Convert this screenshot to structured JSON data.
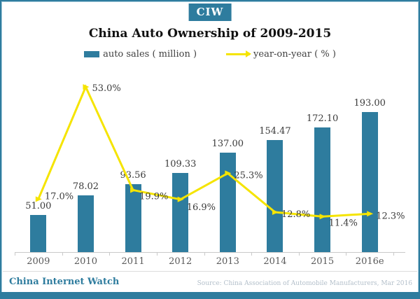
{
  "header": {
    "logo": "CIW",
    "title": "China Auto Ownership of 2009-2015"
  },
  "legend": {
    "bar_label": "auto sales ( million )",
    "line_label": "year-on-year ( % )"
  },
  "chart_data": {
    "type": "bar",
    "subtype": "bar-and-line-combo",
    "title": "China Auto Ownership of 2009-2015",
    "categories": [
      "2009",
      "2010",
      "2011",
      "2012",
      "2013",
      "2014",
      "2015",
      "2016e"
    ],
    "series": [
      {
        "name": "auto sales ( million )",
        "type": "bar",
        "color": "#2E7C9E",
        "values": [
          51.0,
          78.02,
          93.56,
          109.33,
          137.0,
          154.47,
          172.1,
          193.0
        ],
        "labels": [
          "51.00",
          "78.02",
          "93.56",
          "109.33",
          "137.00",
          "154.47",
          "172.10",
          "193.00"
        ]
      },
      {
        "name": "year-on-year ( % )",
        "type": "line",
        "color": "#F5E400",
        "values": [
          17.0,
          53.0,
          19.9,
          16.9,
          25.3,
          12.8,
          11.4,
          12.3
        ],
        "labels": [
          "17.0%",
          "53.0%",
          "19.9%",
          "16.9%",
          "25.3%",
          "12.8%",
          "11.4%",
          "12.3%"
        ]
      }
    ],
    "xlabel": "",
    "ylabel": "",
    "ylim_bar": [
      0,
      200
    ],
    "ylim_line": [
      0,
      60
    ],
    "grid": false,
    "legend_position": "top",
    "axes_visible": {
      "x": true,
      "y": false
    }
  },
  "footer": {
    "brand": "China Internet Watch",
    "source": "Source:  China Association of Automobile Manufacturers, Mar 2016"
  },
  "colors": {
    "accent": "#2E7C9E",
    "line": "#F5E400",
    "axis": "#C9C9C9",
    "label_text": "#3A3A3A",
    "source_text": "#B3BFCA"
  }
}
